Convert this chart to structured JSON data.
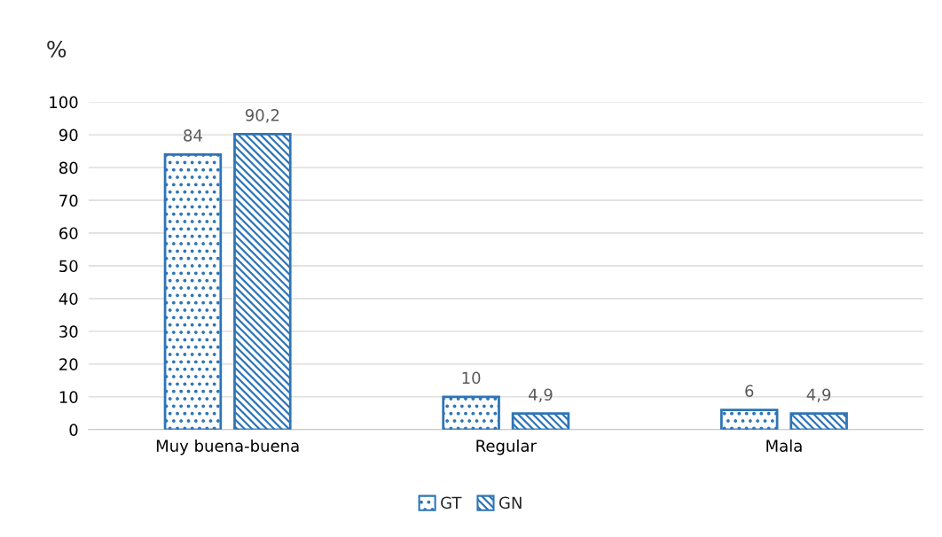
{
  "chart_data": {
    "type": "bar",
    "ylabel": "%",
    "categories": [
      "Muy buena-buena",
      "Regular",
      "Mala"
    ],
    "series": [
      {
        "name": "GT",
        "color": "#2e75b6",
        "values": [
          84,
          10,
          6
        ],
        "value_labels": [
          "84",
          "10",
          "6"
        ]
      },
      {
        "name": "GN",
        "color": "#2e75b6",
        "values": [
          90.2,
          4.9,
          4.9
        ],
        "value_labels": [
          "90,2",
          "4,9",
          "4,9"
        ]
      }
    ],
    "ylim": [
      0,
      100
    ],
    "yticks": [
      0,
      10,
      20,
      30,
      40,
      50,
      60,
      70,
      80,
      90,
      100
    ],
    "grid": "y",
    "legend": "bottom"
  }
}
